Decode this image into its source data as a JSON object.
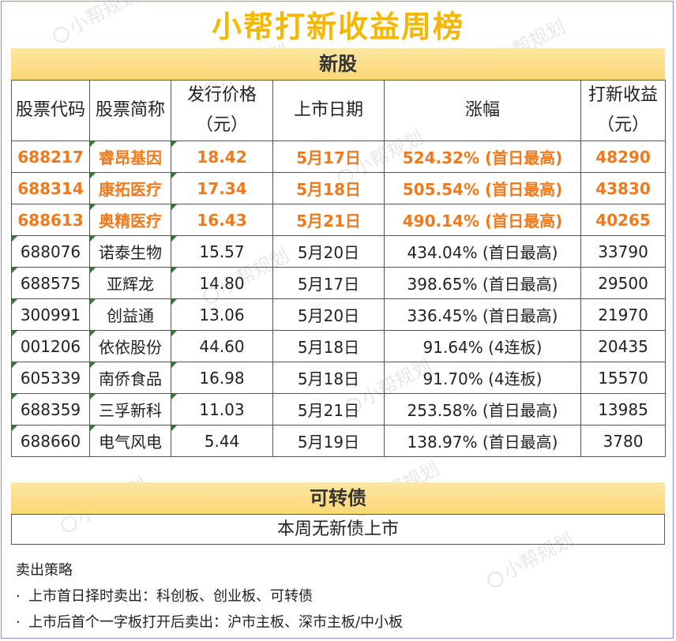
{
  "title": "小帮打新收益周榜",
  "new_stock_section": {
    "heading": "新股",
    "headers": [
      "股票代码",
      "股票简称",
      "发行价格\n（元）",
      "上市日期",
      "涨幅",
      "打新收益\n（元）"
    ],
    "rows": [
      {
        "code": "688217",
        "name": "睿昂基因",
        "price": "18.42",
        "date": "5月17日",
        "gain": "524.32% (首日最高)",
        "profit": "48290",
        "highlight": true
      },
      {
        "code": "688314",
        "name": "康拓医疗",
        "price": "17.34",
        "date": "5月18日",
        "gain": "505.54% (首日最高)",
        "profit": "43830",
        "highlight": true
      },
      {
        "code": "688613",
        "name": "奥精医疗",
        "price": "16.43",
        "date": "5月21日",
        "gain": "490.14% (首日最高)",
        "profit": "40265",
        "highlight": true
      },
      {
        "code": "688076",
        "name": "诺泰生物",
        "price": "15.57",
        "date": "5月20日",
        "gain": "434.04% (首日最高)",
        "profit": "33790",
        "highlight": false
      },
      {
        "code": "688575",
        "name": "亚辉龙",
        "price": "14.80",
        "date": "5月17日",
        "gain": "398.65% (首日最高)",
        "profit": "29500",
        "highlight": false
      },
      {
        "code": "300991",
        "name": "创益通",
        "price": "13.06",
        "date": "5月20日",
        "gain": "336.45% (首日最高)",
        "profit": "21970",
        "highlight": false
      },
      {
        "code": "001206",
        "name": "依依股份",
        "price": "44.60",
        "date": "5月18日",
        "gain": "91.64% (4连板)",
        "profit": "20435",
        "highlight": false
      },
      {
        "code": "605339",
        "name": "南侨食品",
        "price": "16.98",
        "date": "5月18日",
        "gain": "91.70% (4连板)",
        "profit": "15570",
        "highlight": false
      },
      {
        "code": "688359",
        "name": "三孚新科",
        "price": "11.03",
        "date": "5月21日",
        "gain": "253.58% (首日最高)",
        "profit": "13985",
        "highlight": false
      },
      {
        "code": "688660",
        "name": "电气风电",
        "price": "5.44",
        "date": "5月19日",
        "gain": "138.97% (首日最高)",
        "profit": "3780",
        "highlight": false
      }
    ]
  },
  "convertible_section": {
    "heading": "可转债",
    "note": "本周无新债上市"
  },
  "strategy": {
    "heading": "卖出策略",
    "items": [
      "上市首日择时卖出：科创板、创业板、可转债",
      "上市后首个一字板打开后卖出：沪市主板、深市主板/中小板"
    ]
  },
  "watermark": "小帮规划",
  "colors": {
    "title": "#f5b700",
    "band": "#fbd777",
    "highlight_text": "#f07a1b",
    "frame": "#8a8fd9"
  }
}
